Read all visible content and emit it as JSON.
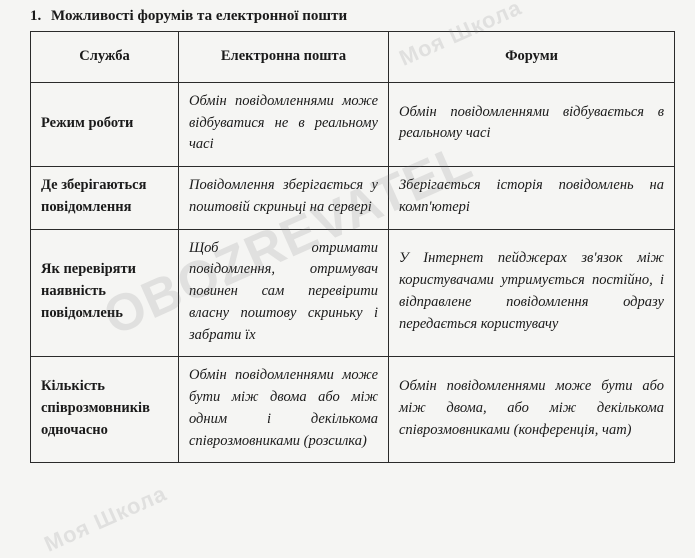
{
  "title": {
    "number": "1.",
    "text": "Можливості форумів та електронної пошти"
  },
  "table": {
    "columns": [
      "Служба",
      "Електронна пошта",
      "Форуми"
    ],
    "rows": [
      {
        "label": "Режим роботи",
        "email": "Обмін повідомленнями може відбуватися не в реальному часі",
        "forum": "Обмін повідомленнями відбувається в реальному часі"
      },
      {
        "label": "Де зберігаються повідомлення",
        "email": "Повідомлення зберігається у поштовій скриньці на сервері",
        "forum": "Зберігається історія повідомлень на комп'ютері"
      },
      {
        "label": "Як перевіряти наявність повідомлень",
        "email": "Щоб отримати повідомлення, отримувач повинен сам перевірити власну поштову скриньку і забрати їх",
        "forum": "У Інтернет пейджерах зв'язок між користувачами утримується постійно, і відправлене повідомлення одразу передається користувачу"
      },
      {
        "label": "Кількість співрозмовників одночасно",
        "email": "Обмін повідомленнями може бути між двома або між одним і декількома співрозмовниками (розсилка)",
        "forum": "Обмін повідомленнями може бути або між двома, або між декількома співрозмовниками (конференція, чат)"
      }
    ]
  },
  "watermark": {
    "small_top": "Моя Школа",
    "big": "OBOZREVATEL",
    "small_bottom": "Моя Школа"
  },
  "colors": {
    "background": "#f5f5f3",
    "text": "#1a1a1a",
    "border": "#2a2a2a",
    "watermark": "rgba(120,120,120,0.16)"
  }
}
